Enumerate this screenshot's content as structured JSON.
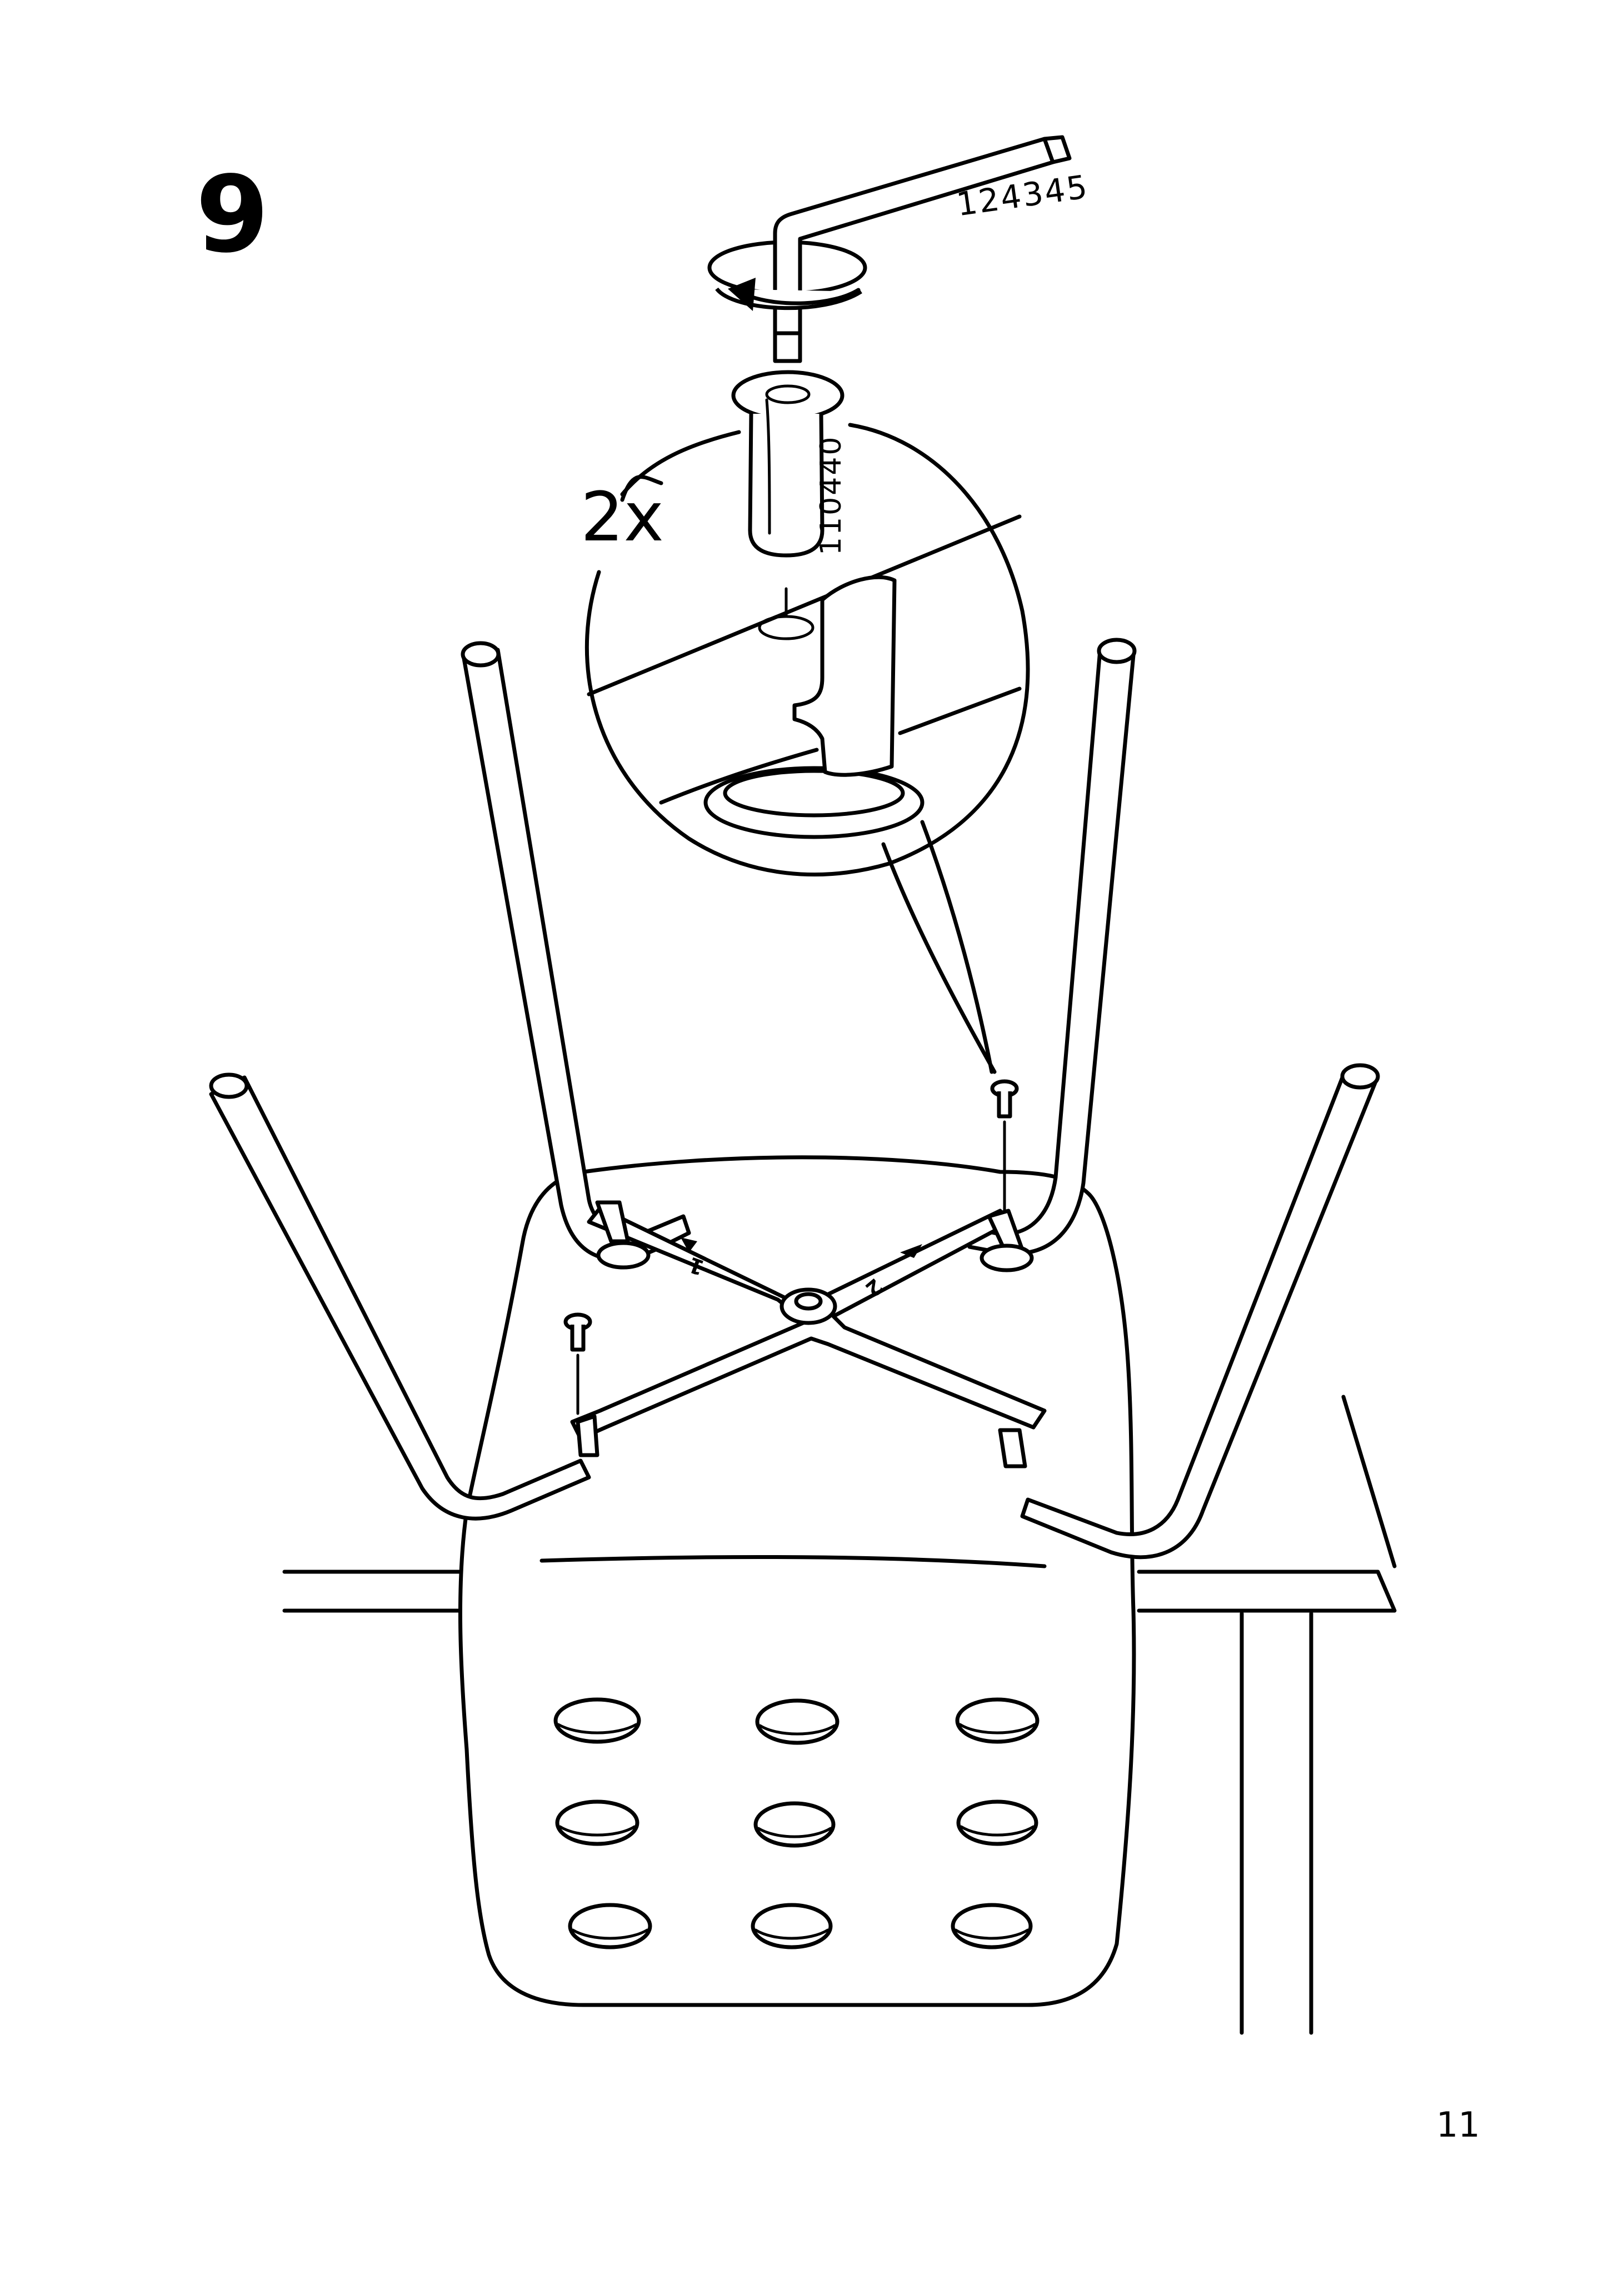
{
  "step": {
    "number": "9"
  },
  "detail": {
    "quantity": "2x"
  },
  "parts": {
    "tool": {
      "number": "124345",
      "icon": "allen-key-icon"
    },
    "screw": {
      "number": "110440",
      "icon": "screw-icon"
    }
  },
  "frame_labels": {
    "leg_1": "1",
    "leg_2": "2"
  },
  "footer": {
    "page_number": "11"
  }
}
